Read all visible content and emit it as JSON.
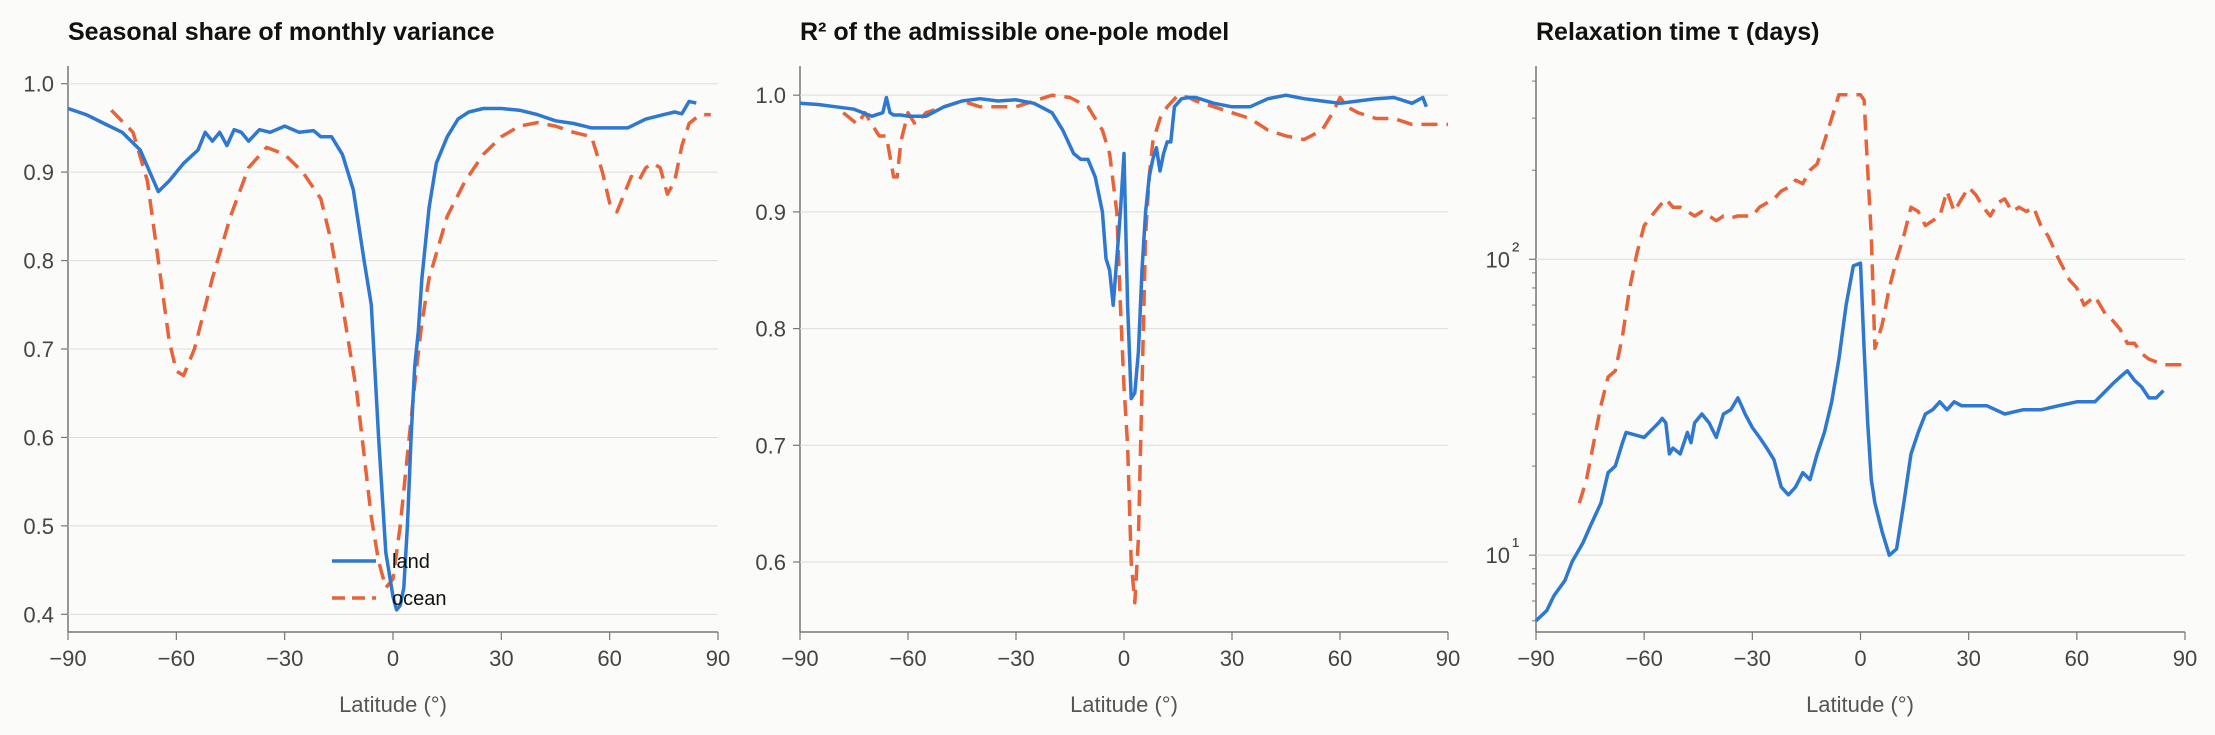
{
  "colors": {
    "land": "#2e78d2",
    "ocean": "#e8633a",
    "grid": "#dcdcdc",
    "axis": "#777777",
    "background": "#fbfbf9"
  },
  "legend": {
    "land": "land",
    "ocean": "ocean"
  },
  "chart_data": [
    {
      "type": "line",
      "title": "Seasonal share of monthly variance",
      "xlabel": "Latitude (°)",
      "ylabel": "",
      "xlim": [
        -90,
        90
      ],
      "ylim": [
        0.38,
        1.02
      ],
      "yscale": "linear",
      "grid": "horizontal",
      "legend_position": "bottom-center",
      "xticks": [
        -90,
        -60,
        -30,
        0,
        30,
        60,
        90
      ],
      "xtick_labels": [
        "−90",
        "−60",
        "−30",
        "0",
        "30",
        "60",
        "90"
      ],
      "yticks": [
        0.4,
        0.5,
        0.6,
        0.7,
        0.8,
        0.9,
        1.0
      ],
      "ytick_labels": [
        "0.4",
        "0.5",
        "0.6",
        "0.7",
        "0.8",
        "0.9",
        "1.0"
      ],
      "series": [
        {
          "name": "land",
          "style": "solid",
          "x": [
            -90,
            -85,
            -80,
            -75,
            -70,
            -65,
            -62,
            -58,
            -54,
            -52,
            -50,
            -48,
            -46,
            -44,
            -42,
            -40,
            -37,
            -34,
            -30,
            -26,
            -22,
            -20,
            -17,
            -14,
            -11,
            -8,
            -6,
            -4,
            -2,
            0,
            1,
            2,
            3,
            4,
            5,
            6,
            7,
            8,
            10,
            12,
            15,
            18,
            21,
            25,
            30,
            35,
            40,
            45,
            50,
            55,
            60,
            65,
            70,
            75,
            78,
            80,
            82,
            84
          ],
          "y": [
            0.972,
            0.965,
            0.955,
            0.945,
            0.925,
            0.878,
            0.89,
            0.91,
            0.925,
            0.945,
            0.935,
            0.945,
            0.93,
            0.948,
            0.945,
            0.935,
            0.948,
            0.945,
            0.952,
            0.945,
            0.947,
            0.94,
            0.94,
            0.92,
            0.88,
            0.8,
            0.75,
            0.6,
            0.47,
            0.42,
            0.405,
            0.41,
            0.43,
            0.5,
            0.6,
            0.68,
            0.72,
            0.78,
            0.86,
            0.91,
            0.94,
            0.96,
            0.968,
            0.972,
            0.972,
            0.97,
            0.965,
            0.958,
            0.955,
            0.95,
            0.95,
            0.95,
            0.96,
            0.965,
            0.968,
            0.966,
            0.98,
            0.978
          ]
        },
        {
          "name": "ocean",
          "style": "dashed",
          "x": [
            -78,
            -72,
            -68,
            -65,
            -62,
            -60,
            -58,
            -55,
            -50,
            -45,
            -40,
            -35,
            -30,
            -25,
            -20,
            -17,
            -14,
            -10,
            -8,
            -6,
            -4,
            -2,
            0,
            2,
            4,
            6,
            8,
            10,
            15,
            20,
            25,
            30,
            35,
            40,
            45,
            50,
            55,
            58,
            60,
            62,
            64,
            66,
            68,
            70,
            72,
            74,
            76,
            78,
            80,
            82,
            85,
            88
          ],
          "y": [
            0.97,
            0.945,
            0.89,
            0.8,
            0.71,
            0.675,
            0.67,
            0.7,
            0.78,
            0.85,
            0.905,
            0.928,
            0.92,
            0.9,
            0.87,
            0.82,
            0.75,
            0.65,
            0.58,
            0.51,
            0.46,
            0.43,
            0.44,
            0.5,
            0.58,
            0.66,
            0.73,
            0.78,
            0.85,
            0.89,
            0.92,
            0.94,
            0.952,
            0.956,
            0.952,
            0.945,
            0.94,
            0.9,
            0.865,
            0.855,
            0.875,
            0.895,
            0.89,
            0.905,
            0.91,
            0.905,
            0.875,
            0.89,
            0.93,
            0.955,
            0.965,
            0.965
          ]
        }
      ]
    },
    {
      "type": "line",
      "title": "R² of the admissible one-pole model",
      "xlabel": "Latitude (°)",
      "ylabel": "",
      "xlim": [
        -90,
        90
      ],
      "ylim": [
        0.54,
        1.025
      ],
      "yscale": "linear",
      "grid": "horizontal",
      "xticks": [
        -90,
        -60,
        -30,
        0,
        30,
        60,
        90
      ],
      "xtick_labels": [
        "−90",
        "−60",
        "−30",
        "0",
        "30",
        "60",
        "90"
      ],
      "yticks": [
        0.6,
        0.7,
        0.8,
        0.9,
        1.0
      ],
      "ytick_labels": [
        "0.6",
        "0.7",
        "0.8",
        "0.9",
        "1.0"
      ],
      "series": [
        {
          "name": "land",
          "style": "solid",
          "x": [
            -90,
            -85,
            -80,
            -75,
            -70,
            -67,
            -66,
            -65,
            -64,
            -62,
            -60,
            -55,
            -50,
            -45,
            -40,
            -35,
            -30,
            -25,
            -20,
            -17,
            -14,
            -12,
            -10,
            -8,
            -6,
            -5,
            -4,
            -3,
            -2,
            -1,
            0,
            1,
            2,
            3,
            4,
            5,
            6,
            7,
            8,
            9,
            10,
            11,
            12,
            13,
            14,
            16,
            18,
            20,
            25,
            30,
            35,
            40,
            45,
            50,
            55,
            60,
            65,
            70,
            75,
            80,
            83,
            84
          ],
          "y": [
            0.993,
            0.992,
            0.99,
            0.988,
            0.982,
            0.985,
            0.998,
            0.985,
            0.983,
            0.983,
            0.982,
            0.982,
            0.99,
            0.995,
            0.997,
            0.995,
            0.996,
            0.993,
            0.985,
            0.97,
            0.95,
            0.945,
            0.945,
            0.93,
            0.9,
            0.86,
            0.85,
            0.82,
            0.86,
            0.9,
            0.95,
            0.82,
            0.74,
            0.745,
            0.78,
            0.85,
            0.9,
            0.93,
            0.945,
            0.955,
            0.935,
            0.95,
            0.96,
            0.96,
            0.99,
            0.997,
            0.998,
            0.998,
            0.993,
            0.99,
            0.99,
            0.997,
            1.0,
            0.997,
            0.995,
            0.993,
            0.995,
            0.997,
            0.998,
            0.993,
            0.998,
            0.99
          ]
        },
        {
          "name": "ocean",
          "style": "dashed",
          "x": [
            -78,
            -74,
            -72,
            -70,
            -68,
            -66,
            -64,
            -63,
            -62,
            -60,
            -58,
            -55,
            -50,
            -45,
            -40,
            -35,
            -30,
            -25,
            -20,
            -15,
            -10,
            -8,
            -6,
            -4,
            -2,
            -1,
            0,
            1,
            2,
            3,
            4,
            5,
            6,
            7,
            8,
            10,
            12,
            15,
            18,
            20,
            25,
            30,
            35,
            40,
            45,
            50,
            55,
            58,
            60,
            62,
            65,
            70,
            75,
            80,
            85,
            90
          ],
          "y": [
            0.985,
            0.975,
            0.985,
            0.975,
            0.965,
            0.965,
            0.93,
            0.93,
            0.96,
            0.985,
            0.975,
            0.985,
            0.99,
            0.995,
            0.99,
            0.99,
            0.99,
            0.995,
            1.0,
            0.998,
            0.99,
            0.98,
            0.97,
            0.95,
            0.9,
            0.82,
            0.75,
            0.7,
            0.6,
            0.565,
            0.62,
            0.75,
            0.88,
            0.93,
            0.96,
            0.98,
            0.99,
            1.0,
            0.998,
            0.995,
            0.99,
            0.985,
            0.98,
            0.97,
            0.965,
            0.962,
            0.97,
            0.985,
            0.998,
            0.99,
            0.985,
            0.98,
            0.98,
            0.975,
            0.975,
            0.975
          ]
        }
      ]
    },
    {
      "type": "line",
      "title": "Relaxation time τ (days)",
      "xlabel": "Latitude (°)",
      "ylabel": "",
      "xlim": [
        -90,
        90
      ],
      "ylim": [
        5.5,
        450
      ],
      "yscale": "log",
      "grid": "horizontal",
      "xticks": [
        -90,
        -60,
        -30,
        0,
        30,
        60,
        90
      ],
      "xtick_labels": [
        "−90",
        "−60",
        "−30",
        "0",
        "30",
        "60",
        "90"
      ],
      "yticks": [
        10,
        100
      ],
      "ytick_labels": [
        "10¹",
        "10²"
      ],
      "series": [
        {
          "name": "land",
          "style": "solid",
          "x": [
            -90,
            -87,
            -85,
            -82,
            -80,
            -77,
            -75,
            -72,
            -70,
            -68,
            -66,
            -65,
            -60,
            -56,
            -55,
            -54,
            -53,
            -52,
            -50,
            -48,
            -47,
            -46,
            -45,
            -44,
            -42,
            -40,
            -38,
            -36,
            -34,
            -33,
            -32,
            -30,
            -28,
            -26,
            -24,
            -22,
            -20,
            -18,
            -16,
            -14,
            -12,
            -10,
            -8,
            -6,
            -4,
            -2,
            0,
            1,
            2,
            3,
            4,
            6,
            8,
            10,
            12,
            14,
            16,
            18,
            20,
            22,
            24,
            26,
            28,
            30,
            35,
            40,
            45,
            50,
            55,
            60,
            65,
            70,
            72,
            74,
            76,
            78,
            80,
            82,
            84
          ],
          "y": [
            6,
            6.5,
            7.3,
            8.2,
            9.5,
            11,
            12.5,
            15,
            19,
            20,
            24,
            26,
            25,
            28,
            29,
            28,
            22,
            23,
            22,
            26,
            24,
            28,
            29,
            30,
            28,
            25,
            30,
            31,
            34,
            32,
            30,
            27,
            25,
            23,
            21,
            17,
            16,
            17,
            19,
            18,
            22,
            26,
            33,
            46,
            70,
            95,
            97,
            50,
            28,
            18,
            15,
            12,
            10,
            10.5,
            15,
            22,
            26,
            30,
            31,
            33,
            31,
            33,
            32,
            32,
            32,
            30,
            31,
            31,
            32,
            33,
            33,
            38,
            40,
            42,
            39,
            37,
            34,
            34,
            36
          ]
        },
        {
          "name": "ocean",
          "style": "dashed",
          "x": [
            -78,
            -76,
            -74,
            -72,
            -70,
            -68,
            -66,
            -64,
            -62,
            -60,
            -58,
            -56,
            -54,
            -52,
            -50,
            -48,
            -46,
            -44,
            -42,
            -40,
            -38,
            -36,
            -34,
            -32,
            -30,
            -28,
            -26,
            -24,
            -22,
            -20,
            -18,
            -16,
            -14,
            -12,
            -10,
            -8,
            -6,
            -4,
            -2,
            0,
            1,
            2,
            3,
            4,
            6,
            8,
            10,
            12,
            14,
            16,
            18,
            20,
            22,
            24,
            26,
            28,
            30,
            32,
            34,
            36,
            38,
            40,
            42,
            44,
            46,
            48,
            50,
            52,
            55,
            58,
            60,
            62,
            65,
            68,
            70,
            72,
            74,
            76,
            78,
            80,
            82,
            84,
            86,
            88,
            90
          ],
          "y": [
            15,
            18,
            24,
            32,
            40,
            42,
            55,
            80,
            105,
            130,
            140,
            150,
            160,
            150,
            150,
            145,
            140,
            145,
            140,
            135,
            140,
            138,
            140,
            140,
            140,
            150,
            155,
            160,
            170,
            175,
            185,
            180,
            200,
            210,
            250,
            300,
            360,
            360,
            360,
            360,
            345,
            200,
            120,
            50,
            60,
            80,
            100,
            120,
            150,
            145,
            130,
            135,
            140,
            170,
            145,
            160,
            175,
            165,
            150,
            140,
            155,
            160,
            145,
            150,
            145,
            150,
            130,
            120,
            100,
            85,
            80,
            70,
            75,
            65,
            62,
            58,
            52,
            52,
            48,
            46,
            45,
            44,
            44,
            44,
            44
          ]
        }
      ]
    }
  ]
}
